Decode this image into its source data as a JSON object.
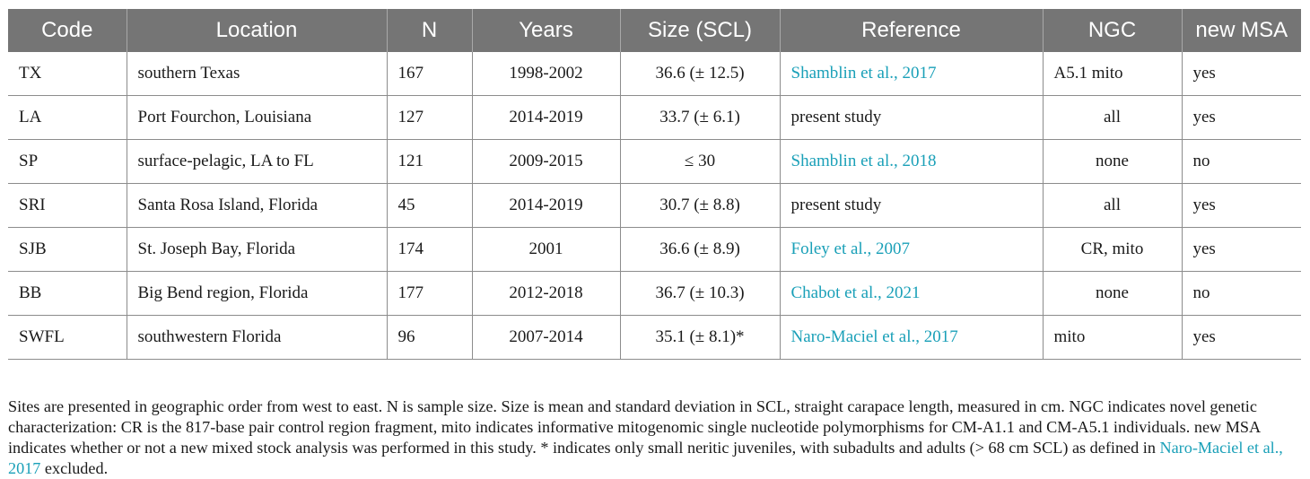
{
  "table": {
    "headers": [
      "Code",
      "Location",
      "N",
      "Years",
      "Size (SCL)",
      "Reference",
      "NGC",
      "new MSA"
    ],
    "rows": [
      {
        "code": "TX",
        "location": "southern Texas",
        "n": "167",
        "years": "1998-2002",
        "size": "36.6 (± 12.5)",
        "reference": "Shamblin et al., 2017",
        "reference_is_link": true,
        "ngc": "A5.1 mito",
        "new_msa": "yes"
      },
      {
        "code": "LA",
        "location": "Port Fourchon, Louisiana",
        "n": "127",
        "years": "2014-2019",
        "size": "33.7 (± 6.1)",
        "reference": "present study",
        "reference_is_link": false,
        "ngc": "all",
        "new_msa": "yes"
      },
      {
        "code": "SP",
        "location": "surface-pelagic, LA to FL",
        "n": "121",
        "years": "2009-2015",
        "size": "≤ 30",
        "reference": "Shamblin et al., 2018",
        "reference_is_link": true,
        "ngc": "none",
        "new_msa": "no"
      },
      {
        "code": "SRI",
        "location": "Santa Rosa Island, Florida",
        "n": "45",
        "years": "2014-2019",
        "size": "30.7 (± 8.8)",
        "reference": "present study",
        "reference_is_link": false,
        "ngc": "all",
        "new_msa": "yes"
      },
      {
        "code": "SJB",
        "location": "St. Joseph Bay, Florida",
        "n": "174",
        "years": "2001",
        "size": "36.6 (± 8.9)",
        "reference": "Foley et al., 2007",
        "reference_is_link": true,
        "ngc": "CR, mito",
        "new_msa": "yes"
      },
      {
        "code": "BB",
        "location": "Big Bend region, Florida",
        "n": "177",
        "years": "2012-2018",
        "size": "36.7 (± 10.3)",
        "reference": "Chabot et al., 2021",
        "reference_is_link": true,
        "ngc": "none",
        "new_msa": "no"
      },
      {
        "code": "SWFL",
        "location": "southwestern Florida",
        "n": "96",
        "years": "2007-2014",
        "size": "35.1 (± 8.1)*",
        "reference": "Naro-Maciel et al., 2017",
        "reference_is_link": true,
        "ngc": "mito",
        "new_msa": "yes"
      }
    ]
  },
  "footnote": {
    "part1": "Sites are presented in geographic order from west to east. N is sample size. Size is mean and standard deviation in SCL, straight carapace length, measured in cm. NGC indicates novel genetic characterization: CR is the 817-base pair control region fragment, mito indicates informative mitogenomic single nucleotide polymorphisms for CM-A1.1 and CM-A5.1 individuals. new MSA indicates whether or not a new mixed stock analysis was performed in this study. * indicates only small neritic juveniles, with subadults and adults (> 68 cm SCL) as defined in ",
    "link": "Naro-Maciel et al., 2017",
    "part2": " excluded."
  },
  "colors": {
    "header_bg": "#757575",
    "link": "#1aa0b8"
  }
}
